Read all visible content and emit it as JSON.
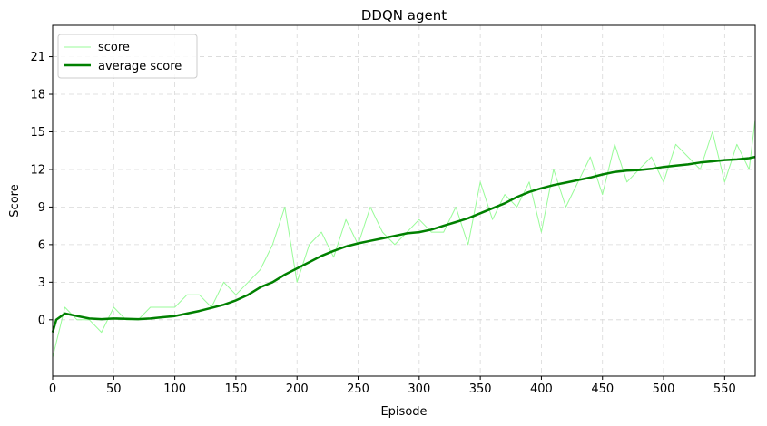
{
  "chart_data": {
    "type": "line",
    "title": "DDQN agent",
    "xlabel": "Episode",
    "ylabel": "Score",
    "xlim": [
      0,
      575
    ],
    "ylim": [
      -4.5,
      23.5
    ],
    "x_ticks": [
      0,
      50,
      100,
      150,
      200,
      250,
      300,
      350,
      400,
      450,
      500,
      550
    ],
    "y_ticks": [
      0,
      3,
      6,
      9,
      12,
      15,
      18,
      21
    ],
    "grid": true,
    "legend_position": "top-left",
    "colors": {
      "score": "#98fb98",
      "average": "#008000",
      "grid": "#d8d8d8"
    },
    "series": [
      {
        "name": "score",
        "style": "thin line",
        "x": [
          0,
          10,
          20,
          30,
          40,
          50,
          60,
          70,
          80,
          90,
          100,
          110,
          120,
          130,
          140,
          150,
          160,
          170,
          180,
          190,
          200,
          210,
          220,
          230,
          240,
          250,
          260,
          270,
          280,
          290,
          300,
          310,
          320,
          330,
          340,
          350,
          360,
          370,
          380,
          390,
          400,
          410,
          420,
          430,
          440,
          450,
          460,
          470,
          480,
          490,
          500,
          510,
          520,
          530,
          540,
          550,
          560,
          570,
          575
        ],
        "values": [
          -3,
          1,
          0,
          0,
          -1,
          1,
          0,
          0,
          1,
          1,
          1,
          2,
          2,
          1,
          3,
          2,
          3,
          4,
          6,
          9,
          3,
          6,
          7,
          5,
          8,
          6,
          9,
          7,
          6,
          7,
          8,
          7,
          7,
          9,
          6,
          11,
          8,
          10,
          9,
          11,
          7,
          12,
          9,
          11,
          13,
          10,
          14,
          11,
          12,
          13,
          11,
          14,
          13,
          12,
          15,
          11,
          14,
          12,
          16
        ]
      },
      {
        "name": "average score",
        "style": "thick line",
        "x": [
          0,
          3,
          10,
          20,
          30,
          40,
          50,
          60,
          70,
          80,
          90,
          100,
          110,
          120,
          130,
          140,
          150,
          160,
          170,
          180,
          190,
          200,
          210,
          220,
          230,
          240,
          250,
          260,
          270,
          280,
          290,
          300,
          310,
          320,
          330,
          340,
          350,
          360,
          370,
          380,
          390,
          400,
          410,
          420,
          430,
          440,
          450,
          460,
          470,
          480,
          490,
          500,
          510,
          520,
          530,
          540,
          550,
          560,
          570,
          575
        ],
        "values": [
          -1,
          0,
          0.5,
          0.3,
          0.1,
          0.05,
          0.1,
          0.08,
          0.05,
          0.1,
          0.2,
          0.3,
          0.5,
          0.7,
          0.95,
          1.2,
          1.55,
          2.0,
          2.6,
          3.0,
          3.6,
          4.1,
          4.6,
          5.1,
          5.5,
          5.85,
          6.1,
          6.3,
          6.5,
          6.7,
          6.9,
          7.0,
          7.2,
          7.5,
          7.8,
          8.1,
          8.5,
          8.9,
          9.3,
          9.8,
          10.2,
          10.5,
          10.75,
          10.95,
          11.15,
          11.35,
          11.6,
          11.8,
          11.9,
          11.95,
          12.05,
          12.2,
          12.3,
          12.4,
          12.55,
          12.65,
          12.75,
          12.8,
          12.9,
          13.0
        ]
      }
    ]
  }
}
